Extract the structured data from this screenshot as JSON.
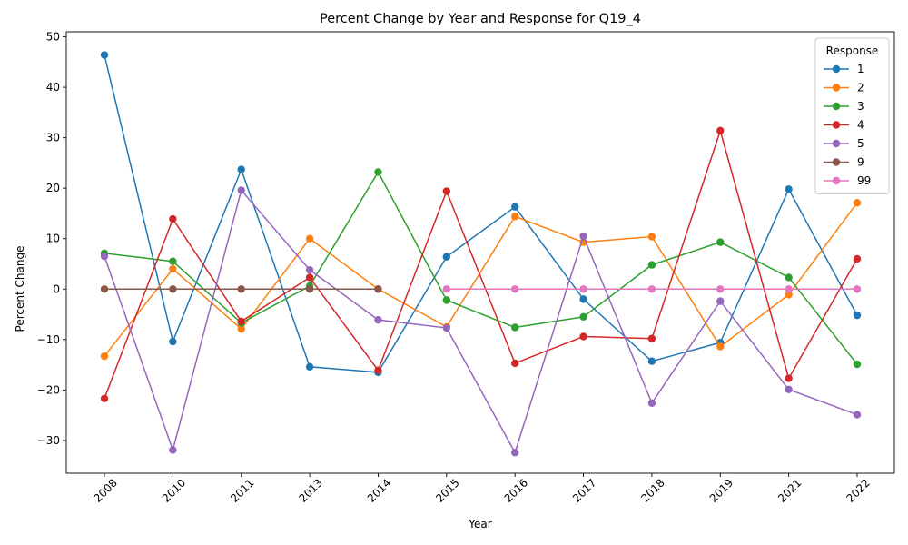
{
  "chart_data": {
    "type": "line",
    "title": "Percent Change by Year and Response for Q19_4",
    "xlabel": "Year",
    "ylabel": "Percent Change",
    "categories": [
      "2008",
      "2010",
      "2011",
      "2013",
      "2014",
      "2015",
      "2016",
      "2017",
      "2018",
      "2019",
      "2021",
      "2022"
    ],
    "ylim": [
      -36.5,
      51
    ],
    "yticks": [
      -30,
      -20,
      -10,
      0,
      10,
      20,
      30,
      40,
      50
    ],
    "ytick_labels": [
      "−30",
      "−20",
      "−10",
      "0",
      "10",
      "20",
      "30",
      "40",
      "50"
    ],
    "grid": false,
    "legend": {
      "title": "Response",
      "placement": "top-right"
    },
    "series": [
      {
        "name": "1",
        "color": "#1f77b4",
        "values": [
          46.4,
          -10.4,
          23.7,
          -15.4,
          -16.5,
          6.4,
          16.3,
          -2.0,
          -14.3,
          -10.6,
          19.8,
          -5.2
        ]
      },
      {
        "name": "2",
        "color": "#ff7f0e",
        "values": [
          -13.3,
          4.0,
          -7.9,
          10.0,
          0.0,
          -7.5,
          14.4,
          9.3,
          10.4,
          -11.4,
          -1.1,
          17.1
        ]
      },
      {
        "name": "3",
        "color": "#2ca02c",
        "values": [
          7.1,
          5.5,
          -6.7,
          0.6,
          23.2,
          -2.2,
          -7.6,
          -5.5,
          4.8,
          9.3,
          2.3,
          -14.9
        ]
      },
      {
        "name": "4",
        "color": "#d62728",
        "values": [
          -21.7,
          13.9,
          -6.4,
          2.3,
          -16.1,
          19.4,
          -14.7,
          -9.4,
          -9.8,
          31.4,
          -17.7,
          6.0
        ]
      },
      {
        "name": "5",
        "color": "#9467bd",
        "values": [
          6.5,
          -31.9,
          19.6,
          3.8,
          -6.1,
          -7.7,
          -32.4,
          10.5,
          -22.6,
          -2.4,
          -19.9,
          -24.9
        ]
      },
      {
        "name": "9",
        "color": "#8c564b",
        "values": [
          0.0,
          0.0,
          0.0,
          0.0,
          0.0,
          null,
          null,
          null,
          null,
          null,
          null,
          null
        ]
      },
      {
        "name": "99",
        "color": "#e377c2",
        "values": [
          null,
          null,
          null,
          null,
          null,
          0.0,
          0.0,
          0.0,
          0.0,
          0.0,
          0.0,
          0.0
        ]
      }
    ]
  }
}
